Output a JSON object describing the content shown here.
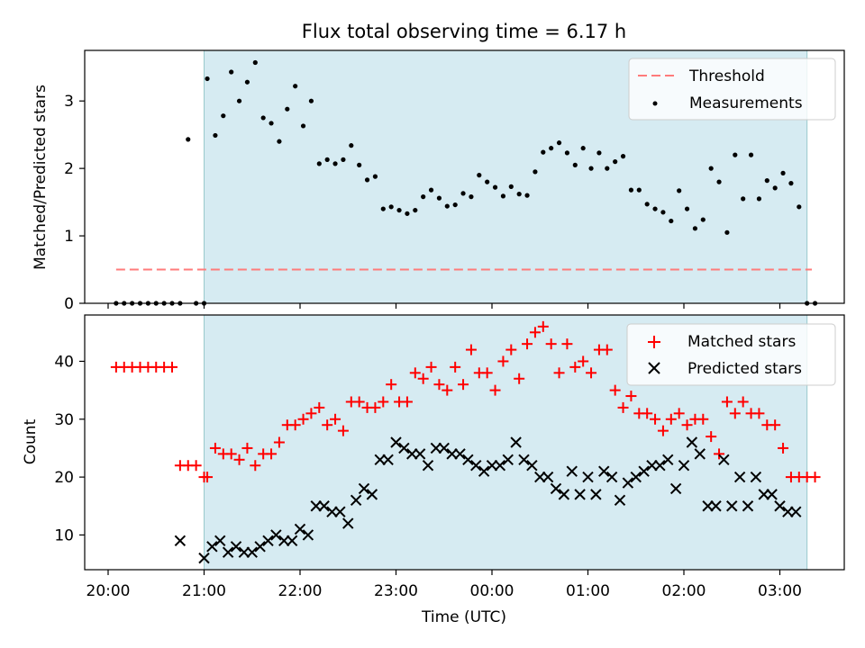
{
  "chart_data": [
    {
      "type": "scatter",
      "title": "Flux total observing time = 6.17 h",
      "xlabel": "",
      "ylabel": "Matched/Predicted stars",
      "ylim": [
        0,
        3.75
      ],
      "yticks": [
        0,
        1,
        2,
        3
      ],
      "grid": false,
      "legend_position": "top-right",
      "observing_window": {
        "start": "21:00",
        "end": "03:17"
      },
      "threshold": {
        "name": "Threshold",
        "y": 0.5,
        "x_start": "20:05",
        "x_end": "03:20",
        "color": "#ff7b7b",
        "style": "dashed"
      },
      "series": [
        {
          "name": "Measurements",
          "color": "#000000",
          "x": [
            "20:05",
            "20:10",
            "20:15",
            "20:20",
            "20:25",
            "20:30",
            "20:35",
            "20:40",
            "20:45",
            "20:50",
            "20:55",
            "21:00",
            "21:02",
            "21:07",
            "21:12",
            "21:17",
            "21:22",
            "21:27",
            "21:32",
            "21:37",
            "21:42",
            "21:47",
            "21:52",
            "21:57",
            "22:02",
            "22:07",
            "22:12",
            "22:17",
            "22:22",
            "22:27",
            "22:32",
            "22:37",
            "22:42",
            "22:47",
            "22:52",
            "22:57",
            "23:02",
            "23:07",
            "23:12",
            "23:17",
            "23:22",
            "23:27",
            "23:32",
            "23:37",
            "23:42",
            "23:47",
            "23:52",
            "23:57",
            "00:02",
            "00:07",
            "00:12",
            "00:17",
            "00:22",
            "00:27",
            "00:32",
            "00:37",
            "00:42",
            "00:47",
            "00:52",
            "00:57",
            "01:02",
            "01:07",
            "01:12",
            "01:17",
            "01:22",
            "01:27",
            "01:32",
            "01:37",
            "01:42",
            "01:47",
            "01:52",
            "01:57",
            "02:02",
            "02:07",
            "02:12",
            "02:17",
            "02:22",
            "02:27",
            "02:32",
            "02:37",
            "02:42",
            "02:47",
            "02:52",
            "02:57",
            "03:02",
            "03:07",
            "03:12",
            "03:17",
            "03:22"
          ],
          "y": [
            0,
            0,
            0,
            0,
            0,
            0,
            0,
            0,
            0,
            2.43,
            0,
            0,
            3.33,
            2.49,
            2.78,
            3.43,
            3.0,
            3.28,
            3.57,
            2.75,
            2.67,
            2.4,
            2.88,
            3.22,
            2.63,
            3.0,
            2.07,
            2.13,
            2.07,
            2.13,
            2.34,
            2.05,
            1.83,
            1.88,
            1.4,
            1.43,
            1.38,
            1.33,
            1.38,
            1.58,
            1.68,
            1.56,
            1.44,
            1.46,
            1.63,
            1.58,
            1.9,
            1.8,
            1.72,
            1.59,
            1.73,
            1.62,
            1.6,
            1.95,
            2.24,
            2.3,
            2.38,
            2.23,
            2.05,
            2.3,
            2.0,
            2.23,
            2.0,
            2.1,
            2.18,
            1.68,
            1.68,
            1.47,
            1.4,
            1.35,
            1.22,
            1.67,
            1.4,
            1.11,
            1.24,
            2.0,
            1.8,
            1.05,
            2.2,
            1.55,
            2.2,
            1.55,
            1.82,
            1.71,
            1.93,
            1.78,
            1.43,
            0,
            0
          ]
        }
      ]
    },
    {
      "type": "scatter",
      "title": "",
      "xlabel": "Time (UTC)",
      "ylabel": "Count",
      "ylim": [
        4,
        48
      ],
      "yticks": [
        10,
        20,
        30,
        40
      ],
      "grid": false,
      "legend_position": "top-right",
      "observing_window": {
        "start": "21:00",
        "end": "03:17"
      },
      "xticks": [
        "20:00",
        "21:00",
        "22:00",
        "23:00",
        "00:00",
        "01:00",
        "02:00",
        "03:00"
      ],
      "series": [
        {
          "name": "Matched stars",
          "color": "#ff0000",
          "marker": "+",
          "x": [
            "20:05",
            "20:10",
            "20:15",
            "20:20",
            "20:25",
            "20:30",
            "20:35",
            "20:40",
            "20:45",
            "20:50",
            "20:55",
            "21:00",
            "21:02",
            "21:07",
            "21:12",
            "21:17",
            "21:22",
            "21:27",
            "21:32",
            "21:37",
            "21:42",
            "21:47",
            "21:52",
            "21:57",
            "22:02",
            "22:07",
            "22:12",
            "22:17",
            "22:22",
            "22:27",
            "22:32",
            "22:37",
            "22:42",
            "22:47",
            "22:52",
            "22:57",
            "23:02",
            "23:07",
            "23:12",
            "23:17",
            "23:22",
            "23:27",
            "23:32",
            "23:37",
            "23:42",
            "23:47",
            "23:52",
            "23:57",
            "00:02",
            "00:07",
            "00:12",
            "00:17",
            "00:22",
            "00:27",
            "00:32",
            "00:37",
            "00:42",
            "00:47",
            "00:52",
            "00:57",
            "01:02",
            "01:07",
            "01:12",
            "01:17",
            "01:22",
            "01:27",
            "01:32",
            "01:37",
            "01:42",
            "01:47",
            "01:52",
            "01:57",
            "02:02",
            "02:07",
            "02:12",
            "02:17",
            "02:22",
            "02:27",
            "02:32",
            "02:37",
            "02:42",
            "02:47",
            "02:52",
            "02:57",
            "03:02",
            "03:07",
            "03:12",
            "03:17",
            "03:22"
          ],
          "y": [
            39,
            39,
            39,
            39,
            39,
            39,
            39,
            39,
            22,
            22,
            22,
            20,
            20,
            25,
            24,
            24,
            23,
            25,
            22,
            24,
            24,
            26,
            29,
            29,
            30,
            31,
            32,
            29,
            30,
            28,
            33,
            33,
            32,
            32,
            33,
            36,
            33,
            33,
            38,
            37,
            39,
            36,
            35,
            39,
            36,
            42,
            38,
            38,
            35,
            40,
            42,
            37,
            43,
            45,
            46,
            43,
            38,
            43,
            39,
            40,
            38,
            42,
            42,
            35,
            32,
            34,
            31,
            31,
            30,
            28,
            30,
            31,
            29,
            30,
            30,
            27,
            24,
            33,
            31,
            33,
            31,
            31,
            29,
            29,
            25,
            20,
            20,
            20,
            20
          ]
        },
        {
          "name": "Predicted stars",
          "color": "#000000",
          "marker": "x",
          "x": [
            "20:45",
            "21:00",
            "21:05",
            "21:10",
            "21:15",
            "21:20",
            "21:25",
            "21:30",
            "21:35",
            "21:40",
            "21:45",
            "21:50",
            "21:55",
            "22:00",
            "22:05",
            "22:10",
            "22:15",
            "22:20",
            "22:25",
            "22:30",
            "22:35",
            "22:40",
            "22:45",
            "22:50",
            "22:55",
            "23:00",
            "23:05",
            "23:10",
            "23:15",
            "23:20",
            "23:25",
            "23:30",
            "23:35",
            "23:40",
            "23:45",
            "23:50",
            "23:55",
            "00:00",
            "00:05",
            "00:10",
            "00:15",
            "00:20",
            "00:25",
            "00:30",
            "00:35",
            "00:40",
            "00:45",
            "00:50",
            "00:55",
            "01:00",
            "01:05",
            "01:10",
            "01:15",
            "01:20",
            "01:25",
            "01:30",
            "01:35",
            "01:40",
            "01:45",
            "01:50",
            "01:55",
            "02:00",
            "02:05",
            "02:10",
            "02:15",
            "02:20",
            "02:25",
            "02:30",
            "02:35",
            "02:40",
            "02:45",
            "02:50",
            "02:55",
            "03:00",
            "03:05",
            "03:10"
          ],
          "y": [
            9,
            6,
            8,
            9,
            7,
            8,
            7,
            7,
            8,
            9,
            10,
            9,
            9,
            11,
            10,
            15,
            15,
            14,
            14,
            12,
            16,
            18,
            17,
            23,
            23,
            26,
            25,
            24,
            24,
            22,
            25,
            25,
            24,
            24,
            23,
            22,
            21,
            22,
            22,
            23,
            26,
            23,
            22,
            20,
            20,
            18,
            17,
            21,
            17,
            20,
            17,
            21,
            20,
            16,
            19,
            20,
            21,
            22,
            22,
            23,
            18,
            22,
            26,
            24,
            15,
            15,
            23,
            15,
            20,
            15,
            20,
            17,
            17,
            15,
            14,
            14
          ]
        }
      ]
    }
  ]
}
